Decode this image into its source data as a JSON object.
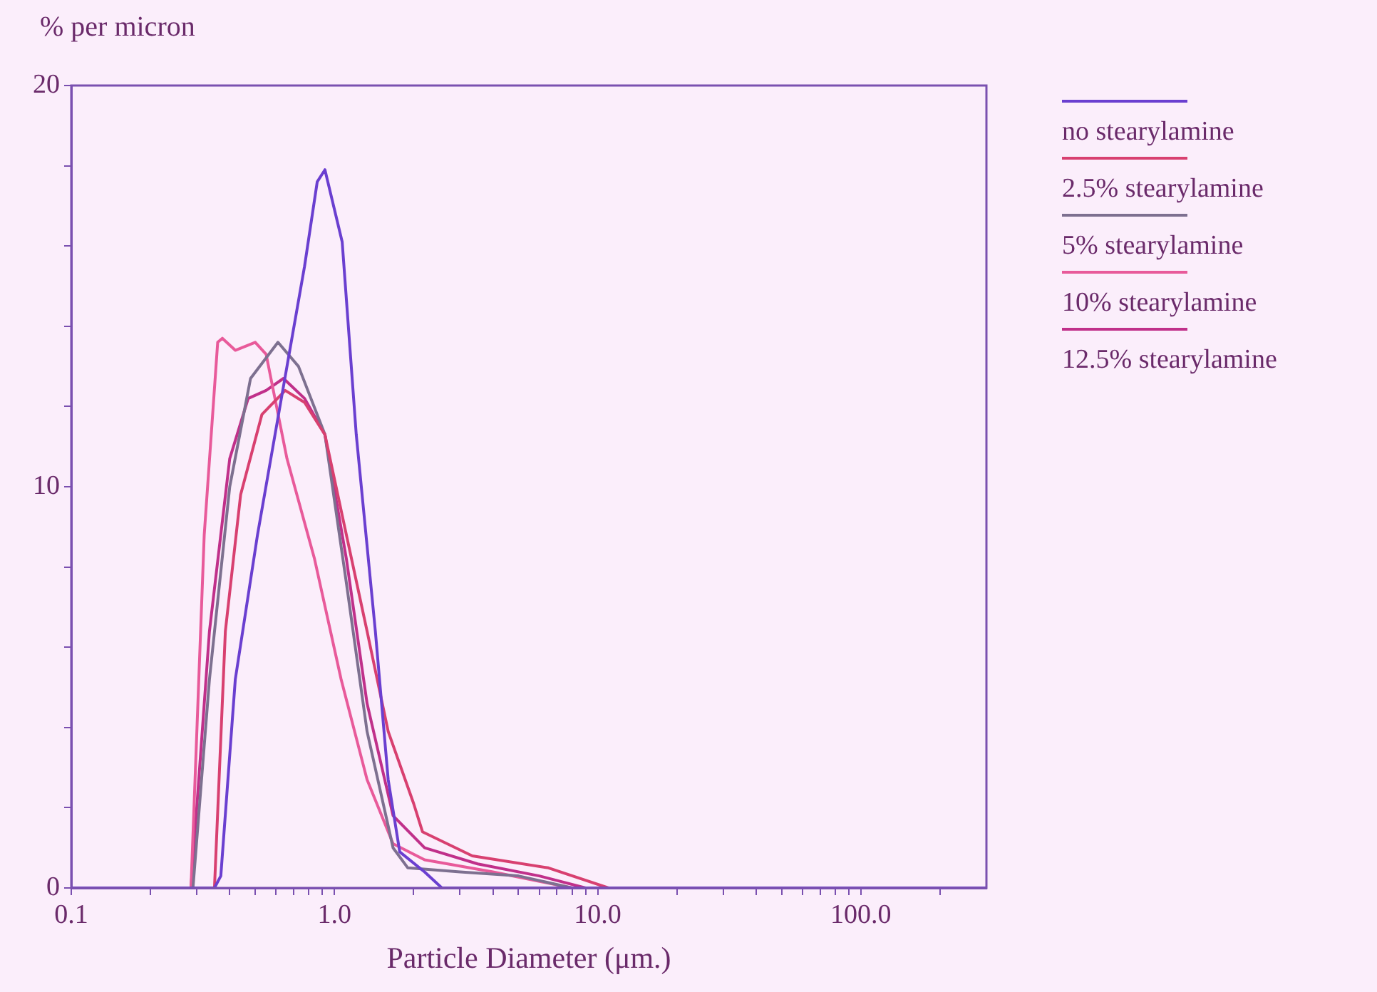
{
  "chart_data": {
    "type": "line",
    "xlabel": "Particle Diameter (μm.)",
    "ylabel": "% per micron",
    "log": "x",
    "grid": false,
    "legend": "right",
    "marker": "none",
    "line_style": "solid",
    "xlim": [
      0.1,
      300
    ],
    "xticks": [
      {
        "value": 0.1,
        "label": "0.1"
      },
      {
        "value": 0.2,
        "label": null
      },
      {
        "value": 0.3,
        "label": null
      },
      {
        "value": 0.4,
        "label": null
      },
      {
        "value": 0.5,
        "label": null
      },
      {
        "value": 0.6,
        "label": null
      },
      {
        "value": 0.7,
        "label": null
      },
      {
        "value": 0.8,
        "label": null
      },
      {
        "value": 0.9,
        "label": null
      },
      {
        "value": 1,
        "label": "1.0"
      },
      {
        "value": 2,
        "label": null
      },
      {
        "value": 3,
        "label": null
      },
      {
        "value": 4,
        "label": null
      },
      {
        "value": 5,
        "label": null
      },
      {
        "value": 6,
        "label": null
      },
      {
        "value": 7,
        "label": null
      },
      {
        "value": 8,
        "label": null
      },
      {
        "value": 9,
        "label": null
      },
      {
        "value": 10,
        "label": "10.0"
      },
      {
        "value": 20,
        "label": null
      },
      {
        "value": 30,
        "label": null
      },
      {
        "value": 40,
        "label": null
      },
      {
        "value": 50,
        "label": null
      },
      {
        "value": 60,
        "label": null
      },
      {
        "value": 70,
        "label": null
      },
      {
        "value": 80,
        "label": null
      },
      {
        "value": 90,
        "label": null
      },
      {
        "value": 100,
        "label": "100.0"
      },
      {
        "value": 200,
        "label": null
      }
    ],
    "ylim": [
      0,
      20
    ],
    "yticks": [
      0,
      {
        "value": 2,
        "label": null
      },
      {
        "value": 4,
        "label": null
      },
      {
        "value": 6,
        "label": null
      },
      {
        "value": 8,
        "label": null
      },
      10,
      {
        "value": 12,
        "label": null
      },
      {
        "value": 14,
        "label": null
      },
      {
        "value": 16,
        "label": null
      },
      {
        "value": 18,
        "label": null
      },
      20
    ],
    "series": [
      {
        "name": "no stearylamine",
        "color": "#6a3fd0",
        "x": [
          0.1,
          0.35,
          0.37,
          0.42,
          0.51,
          0.64,
          0.77,
          0.86,
          0.92,
          1.07,
          1.21,
          1.43,
          1.6,
          1.77,
          2.2,
          2.56,
          300
        ],
        "values": [
          0,
          0,
          0.3,
          5.2,
          8.8,
          12.5,
          15.5,
          17.6,
          17.9,
          16.1,
          11.3,
          6.4,
          2.7,
          0.9,
          0.4,
          0,
          0
        ]
      },
      {
        "name": "2.5% stearylamine",
        "color": "#d84070",
        "x": [
          0.1,
          0.35,
          0.385,
          0.44,
          0.53,
          0.65,
          0.77,
          0.92,
          1.11,
          1.33,
          1.6,
          2.0,
          2.16,
          3.34,
          6.5,
          11,
          300
        ],
        "values": [
          0,
          0,
          6.4,
          9.8,
          11.8,
          12.4,
          12.1,
          11.3,
          8.8,
          6.4,
          3.9,
          2.1,
          1.4,
          0.8,
          0.5,
          0,
          0
        ]
      },
      {
        "name": "5% stearylamine",
        "color": "#7d7090",
        "x": [
          0.1,
          0.29,
          0.335,
          0.4,
          0.48,
          0.61,
          0.73,
          0.92,
          1.11,
          1.33,
          1.67,
          1.9,
          3,
          5,
          8,
          300
        ],
        "values": [
          0,
          0,
          5.2,
          10,
          12.7,
          13.6,
          13,
          11.3,
          7.6,
          3.9,
          1,
          0.5,
          0.4,
          0.3,
          0,
          0
        ]
      },
      {
        "name": "10% stearylamine",
        "color": "#e85a9a",
        "x": [
          0.1,
          0.285,
          0.32,
          0.36,
          0.375,
          0.42,
          0.5,
          0.55,
          0.66,
          0.84,
          1.06,
          1.33,
          1.67,
          2.2,
          4,
          8,
          300
        ],
        "values": [
          0,
          0,
          8.8,
          13.6,
          13.7,
          13.4,
          13.6,
          13.3,
          10.7,
          8.2,
          5.2,
          2.7,
          1.1,
          0.7,
          0.4,
          0,
          0
        ]
      },
      {
        "name": "12.5% stearylamine",
        "color": "#c0308a",
        "x": [
          0.1,
          0.285,
          0.335,
          0.4,
          0.47,
          0.55,
          0.64,
          0.77,
          0.92,
          1.11,
          1.33,
          1.67,
          2.2,
          3.5,
          6,
          9,
          300
        ],
        "values": [
          0,
          0,
          6.4,
          10.7,
          12.2,
          12.4,
          12.7,
          12.2,
          11.3,
          8.2,
          4.6,
          1.8,
          1,
          0.6,
          0.3,
          0,
          0
        ]
      }
    ]
  }
}
